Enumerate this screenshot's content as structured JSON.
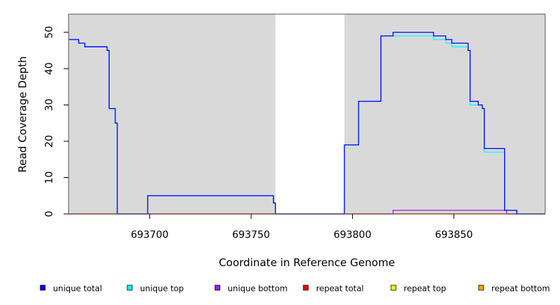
{
  "chart_data": {
    "type": "line",
    "title": "",
    "xlabel": "Coordinate in Reference Genome",
    "ylabel": "Read Coverage Depth",
    "xlim": [
      693660,
      693895
    ],
    "ylim": [
      0,
      55
    ],
    "x_ticks": [
      693700,
      693750,
      693800,
      693850
    ],
    "x_tick_labels": [
      "693700",
      "693750",
      "693800",
      "693850"
    ],
    "y_ticks": [
      0,
      10,
      20,
      30,
      40,
      50
    ],
    "y_tick_labels": [
      "0",
      "10",
      "20",
      "30",
      "40",
      "50"
    ],
    "grid": false,
    "shaded_regions": [
      {
        "x": [
          693660,
          693762
        ],
        "color": "#d9d9d9"
      },
      {
        "x": [
          693796,
          693895
        ],
        "color": "#d9d9d9"
      }
    ],
    "legend_position": "bottom",
    "series": [
      {
        "name": "unique total",
        "color": "#0000ff",
        "step": true,
        "points": [
          [
            693660,
            48
          ],
          [
            693665,
            47
          ],
          [
            693668,
            46
          ],
          [
            693679,
            45
          ],
          [
            693680,
            29
          ],
          [
            693683,
            25
          ],
          [
            693684,
            0
          ],
          [
            693699,
            5
          ],
          [
            693761,
            3
          ],
          [
            693762,
            0
          ],
          [
            693796,
            19
          ],
          [
            693803,
            31
          ],
          [
            693814,
            49
          ],
          [
            693820,
            50
          ],
          [
            693840,
            49
          ],
          [
            693846,
            48
          ],
          [
            693849,
            47
          ],
          [
            693857,
            45
          ],
          [
            693858,
            31
          ],
          [
            693862,
            30
          ],
          [
            693864,
            29
          ],
          [
            693865,
            18
          ],
          [
            693875,
            1
          ],
          [
            693881,
            0
          ],
          [
            693895,
            0
          ]
        ]
      },
      {
        "name": "unique top",
        "color": "#00ffff",
        "step": true,
        "points": [
          [
            693660,
            48
          ],
          [
            693665,
            47
          ],
          [
            693668,
            46
          ],
          [
            693679,
            45
          ],
          [
            693680,
            29
          ],
          [
            693683,
            25
          ],
          [
            693684,
            0
          ],
          [
            693699,
            5
          ],
          [
            693761,
            3
          ],
          [
            693762,
            0
          ],
          [
            693796,
            19
          ],
          [
            693803,
            31
          ],
          [
            693814,
            49
          ],
          [
            693820,
            49
          ],
          [
            693840,
            48
          ],
          [
            693846,
            47
          ],
          [
            693849,
            46
          ],
          [
            693857,
            45
          ],
          [
            693858,
            30
          ],
          [
            693862,
            30
          ],
          [
            693864,
            29
          ],
          [
            693865,
            17
          ],
          [
            693875,
            1
          ],
          [
            693881,
            0
          ],
          [
            693895,
            0
          ]
        ]
      },
      {
        "name": "unique bottom",
        "color": "#a020f0",
        "step": true,
        "points": [
          [
            693660,
            0
          ],
          [
            693820,
            1
          ],
          [
            693875,
            1
          ],
          [
            693876,
            0
          ],
          [
            693895,
            0
          ]
        ]
      },
      {
        "name": "repeat total",
        "color": "#ff0000",
        "step": true,
        "points": [
          [
            693660,
            0
          ],
          [
            693895,
            0
          ]
        ]
      },
      {
        "name": "repeat top",
        "color": "#ffff00",
        "step": true,
        "points": [
          [
            693660,
            0
          ],
          [
            693895,
            0
          ]
        ]
      },
      {
        "name": "repeat bottom",
        "color": "#ffa500",
        "step": true,
        "points": [
          [
            693660,
            0
          ],
          [
            693895,
            0
          ]
        ]
      }
    ]
  }
}
